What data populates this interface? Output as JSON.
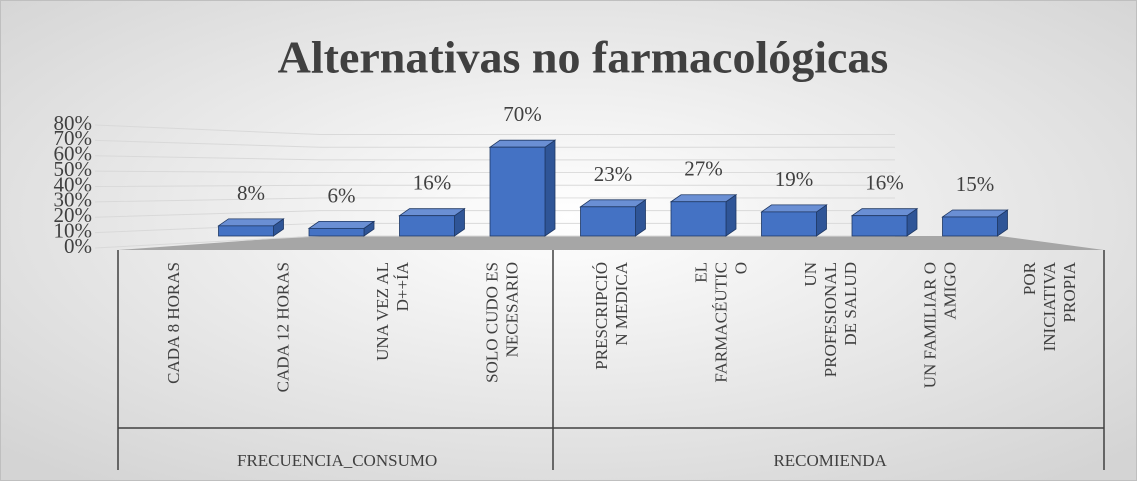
{
  "chart_data": {
    "type": "bar3d",
    "title": "Alternativas no farmacológicas",
    "groups": [
      {
        "name": "FRECUENCIA_CONSUMO",
        "categories": [
          "CADA 8 HORAS",
          "CADA 12 HORAS",
          "UNA VEZ AL D++ÍA",
          "SOLO CUDO ES NECESARIO"
        ],
        "values": [
          8,
          6,
          16,
          70
        ],
        "value_labels": [
          "8%",
          "6%",
          "16%",
          "70%"
        ]
      },
      {
        "name": "RECOMIENDA",
        "categories": [
          "PRESCRIPCIÓN MEDICA",
          "EL FARMACÉUTICO",
          "UN PROFESIONAL DE SALUD",
          "UN FAMILIAR O AMIGO",
          "POR INICIATIVA PROPIA"
        ],
        "values": [
          23,
          27,
          19,
          16,
          15
        ],
        "value_labels": [
          "23%",
          "27%",
          "19%",
          "16%",
          "15%"
        ]
      }
    ],
    "color": "#4472c4",
    "ylim": [
      0,
      80
    ],
    "yticks": [
      {
        "value": 0,
        "label": "0%"
      },
      {
        "value": 10,
        "label": "10%"
      },
      {
        "value": 20,
        "label": "20%"
      },
      {
        "value": 30,
        "label": "30%"
      },
      {
        "value": 40,
        "label": "40%"
      },
      {
        "value": 50,
        "label": "50%"
      },
      {
        "value": 60,
        "label": "60%"
      },
      {
        "value": 70,
        "label": "70%"
      },
      {
        "value": 80,
        "label": "80%"
      }
    ],
    "grid": true
  }
}
